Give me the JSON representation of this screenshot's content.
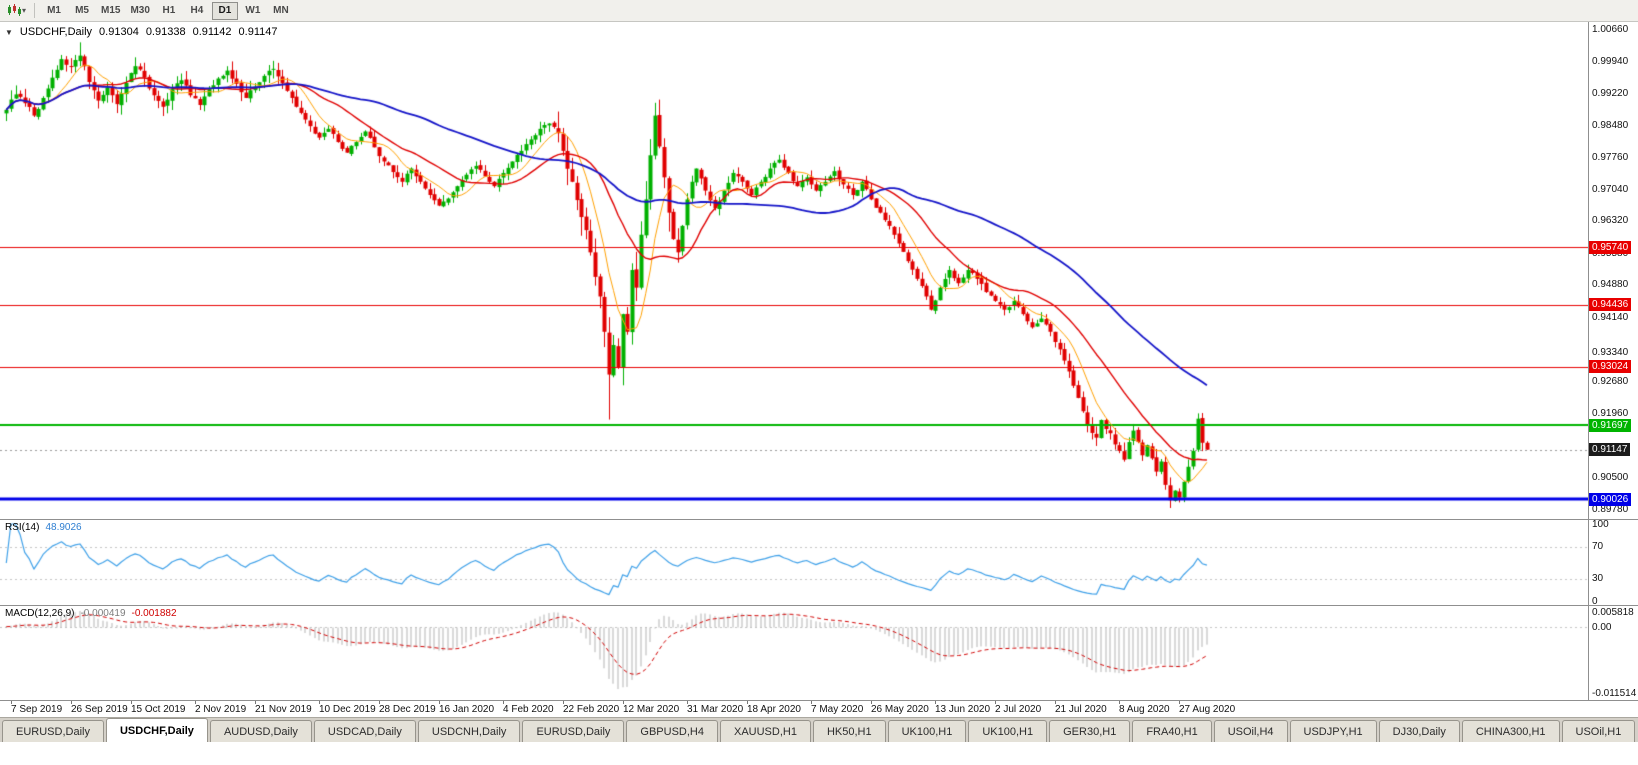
{
  "toolbar": {
    "chart_menu_icon": "candlestick-chart-icon",
    "dropdown_icon": "▾",
    "timeframes": [
      "M1",
      "M5",
      "M15",
      "M30",
      "H1",
      "H4",
      "D1",
      "W1",
      "MN"
    ],
    "active_timeframe": "D1"
  },
  "chart_header": {
    "collapse_icon": "▼",
    "symbol": "USDCHF,Daily",
    "open": "0.91304",
    "high": "0.91338",
    "low": "0.91142",
    "close": "0.91147"
  },
  "price_axis": {
    "decimals": 5,
    "ticks": [
      1.0066,
      0.9994,
      0.9922,
      0.9848,
      0.9776,
      0.9704,
      0.9632,
      0.9558,
      0.9488,
      0.9414,
      0.9334,
      0.9268,
      0.9196,
      0.905,
      0.8978
    ]
  },
  "levels": [
    {
      "value": 0.9574,
      "color": "#e80000",
      "line_width": 1
    },
    {
      "value": 0.94436,
      "color": "#e80000",
      "line_width": 1
    },
    {
      "value": 0.93024,
      "color": "#e80000",
      "line_width": 1
    },
    {
      "value": 0.91697,
      "color": "#00b400",
      "line_width": 2
    },
    {
      "value": 0.90026,
      "color": "#0000e8",
      "line_width": 3
    }
  ],
  "current_price": {
    "value": 0.91147,
    "label_bg": "#1b1b1b",
    "label_fg": "#ffffff"
  },
  "chart_data": {
    "type": "candlestick",
    "title": "USDCHF,Daily",
    "bars": 262,
    "price_min": 0.8978,
    "price_max": 1.0066,
    "up_color": "#00b000",
    "down_color": "#e00000",
    "close_anchors": [
      [
        0,
        0.9885
      ],
      [
        2,
        0.992
      ],
      [
        4,
        0.99
      ],
      [
        6,
        0.9872
      ],
      [
        8,
        0.9912
      ],
      [
        10,
        0.9958
      ],
      [
        12,
        1.0
      ],
      [
        14,
        0.9982
      ],
      [
        16,
        1.0008
      ],
      [
        18,
        0.9948
      ],
      [
        20,
        0.9906
      ],
      [
        22,
        0.9936
      ],
      [
        24,
        0.9898
      ],
      [
        26,
        0.9946
      ],
      [
        28,
        0.9984
      ],
      [
        30,
        0.9958
      ],
      [
        32,
        0.9918
      ],
      [
        34,
        0.9892
      ],
      [
        36,
        0.9932
      ],
      [
        38,
        0.9952
      ],
      [
        40,
        0.9918
      ],
      [
        42,
        0.9896
      ],
      [
        44,
        0.9932
      ],
      [
        46,
        0.9956
      ],
      [
        48,
        0.9974
      ],
      [
        50,
        0.9944
      ],
      [
        52,
        0.9912
      ],
      [
        54,
        0.9938
      ],
      [
        56,
        0.9962
      ],
      [
        58,
        0.9978
      ],
      [
        60,
        0.9946
      ],
      [
        62,
        0.9912
      ],
      [
        64,
        0.9878
      ],
      [
        66,
        0.9848
      ],
      [
        68,
        0.9822
      ],
      [
        70,
        0.9842
      ],
      [
        72,
        0.9812
      ],
      [
        74,
        0.9788
      ],
      [
        76,
        0.9812
      ],
      [
        78,
        0.9836
      ],
      [
        80,
        0.98
      ],
      [
        82,
        0.9768
      ],
      [
        84,
        0.9744
      ],
      [
        86,
        0.9722
      ],
      [
        88,
        0.9752
      ],
      [
        90,
        0.9722
      ],
      [
        92,
        0.9692
      ],
      [
        94,
        0.9668
      ],
      [
        96,
        0.9684
      ],
      [
        98,
        0.9712
      ],
      [
        100,
        0.9738
      ],
      [
        102,
        0.9758
      ],
      [
        104,
        0.9734
      ],
      [
        106,
        0.9712
      ],
      [
        108,
        0.9742
      ],
      [
        110,
        0.9768
      ],
      [
        112,
        0.9792
      ],
      [
        114,
        0.9818
      ],
      [
        116,
        0.9842
      ],
      [
        118,
        0.9854
      ],
      [
        120,
        0.9832
      ],
      [
        121,
        0.9792
      ],
      [
        123,
        0.9722
      ],
      [
        125,
        0.9642
      ],
      [
        127,
        0.9562
      ],
      [
        129,
        0.9462
      ],
      [
        130,
        0.9382
      ],
      [
        131,
        0.9285
      ],
      [
        132,
        0.9352
      ],
      [
        133,
        0.9302
      ],
      [
        134,
        0.9422
      ],
      [
        135,
        0.9382
      ],
      [
        136,
        0.9522
      ],
      [
        137,
        0.9482
      ],
      [
        138,
        0.9602
      ],
      [
        139,
        0.9682
      ],
      [
        140,
        0.9782
      ],
      [
        141,
        0.9872
      ],
      [
        142,
        0.9802
      ],
      [
        143,
        0.9732
      ],
      [
        144,
        0.9652
      ],
      [
        145,
        0.9592
      ],
      [
        146,
        0.9562
      ],
      [
        147,
        0.9622
      ],
      [
        148,
        0.9682
      ],
      [
        149,
        0.9722
      ],
      [
        150,
        0.9752
      ],
      [
        152,
        0.9702
      ],
      [
        154,
        0.9662
      ],
      [
        156,
        0.9702
      ],
      [
        158,
        0.9742
      ],
      [
        160,
        0.9722
      ],
      [
        162,
        0.9692
      ],
      [
        164,
        0.9722
      ],
      [
        166,
        0.9752
      ],
      [
        168,
        0.9772
      ],
      [
        170,
        0.9742
      ],
      [
        172,
        0.9712
      ],
      [
        174,
        0.9732
      ],
      [
        176,
        0.9702
      ],
      [
        178,
        0.9722
      ],
      [
        180,
        0.9746
      ],
      [
        182,
        0.9716
      ],
      [
        184,
        0.9692
      ],
      [
        186,
        0.9722
      ],
      [
        188,
        0.9682
      ],
      [
        190,
        0.9652
      ],
      [
        192,
        0.9622
      ],
      [
        194,
        0.9582
      ],
      [
        196,
        0.9542
      ],
      [
        198,
        0.9502
      ],
      [
        200,
        0.9462
      ],
      [
        201,
        0.9432
      ],
      [
        203,
        0.9482
      ],
      [
        205,
        0.9522
      ],
      [
        207,
        0.9492
      ],
      [
        209,
        0.9522
      ],
      [
        211,
        0.9502
      ],
      [
        213,
        0.9472
      ],
      [
        215,
        0.9452
      ],
      [
        217,
        0.9432
      ],
      [
        219,
        0.9452
      ],
      [
        221,
        0.9422
      ],
      [
        223,
        0.9392
      ],
      [
        225,
        0.9412
      ],
      [
        227,
        0.9382
      ],
      [
        229,
        0.9342
      ],
      [
        231,
        0.9292
      ],
      [
        233,
        0.9232
      ],
      [
        235,
        0.9172
      ],
      [
        237,
        0.9142
      ],
      [
        238,
        0.9182
      ],
      [
        240,
        0.9152
      ],
      [
        242,
        0.9112
      ],
      [
        243,
        0.9092
      ],
      [
        244,
        0.9132
      ],
      [
        245,
        0.9158
      ],
      [
        246,
        0.9132
      ],
      [
        247,
        0.9102
      ],
      [
        248,
        0.9125
      ],
      [
        249,
        0.9095
      ],
      [
        250,
        0.9065
      ],
      [
        251,
        0.9088
      ],
      [
        252,
        0.9035
      ],
      [
        253,
        0.9
      ],
      [
        254,
        0.9022
      ],
      [
        255,
        0.9006
      ],
      [
        256,
        0.9042
      ],
      [
        257,
        0.9076
      ],
      [
        258,
        0.9112
      ],
      [
        259,
        0.9185
      ],
      [
        260,
        0.91304
      ],
      [
        261,
        0.91147
      ]
    ],
    "wick_extremes": [
      {
        "index": 16,
        "high": 1.0038
      },
      {
        "index": 131,
        "low": 0.9183
      },
      {
        "index": 141,
        "high": 0.9901
      },
      {
        "index": 253,
        "low": 0.8998
      },
      {
        "index": 259,
        "high": 0.9197
      }
    ],
    "last_bar": {
      "open": 0.91304,
      "high": 0.91338,
      "low": 0.91142,
      "close": 0.91147
    },
    "moving_averages": [
      {
        "name": "ma-fast",
        "period": 8,
        "color": "#ffa000",
        "width": 1
      },
      {
        "name": "ma-medium",
        "period": 20,
        "color": "#e00000",
        "width": 1.4
      },
      {
        "name": "ma-slow",
        "period": 55,
        "color": "#1414c8",
        "width": 1.8
      }
    ],
    "x_ticks": [
      {
        "index": 1,
        "label": "7 Sep 2019"
      },
      {
        "index": 14,
        "label": "26 Sep 2019"
      },
      {
        "index": 27,
        "label": "15 Oct 2019"
      },
      {
        "index": 41,
        "label": "2 Nov 2019"
      },
      {
        "index": 54,
        "label": "21 Nov 2019"
      },
      {
        "index": 68,
        "label": "10 Dec 2019"
      },
      {
        "index": 81,
        "label": "28 Dec 2019"
      },
      {
        "index": 94,
        "label": "16 Jan 2020"
      },
      {
        "index": 108,
        "label": "4 Feb 2020"
      },
      {
        "index": 121,
        "label": "22 Feb 2020"
      },
      {
        "index": 134,
        "label": "12 Mar 2020"
      },
      {
        "index": 148,
        "label": "31 Mar 2020"
      },
      {
        "index": 161,
        "label": "18 Apr 2020"
      },
      {
        "index": 175,
        "label": "7 May 2020"
      },
      {
        "index": 188,
        "label": "26 May 2020"
      },
      {
        "index": 202,
        "label": "13 Jun 2020"
      },
      {
        "index": 215,
        "label": "2 Jul 2020"
      },
      {
        "index": 228,
        "label": "21 Jul 2020"
      },
      {
        "index": 242,
        "label": "8 Aug 2020"
      },
      {
        "index": 255,
        "label": "27 Aug 2020"
      }
    ]
  },
  "rsi": {
    "name": "RSI(14)",
    "value": "48.9026",
    "period": 14,
    "color": "#3ea0e8",
    "axis_ticks": [
      100,
      70,
      30,
      0
    ],
    "guide_levels": [
      70,
      30
    ]
  },
  "macd": {
    "name": "MACD(12,26,9)",
    "macd_value": "-0.000419",
    "signal_value": "-0.001882",
    "fast": 12,
    "slow": 26,
    "signal": 9,
    "hist_color": "#b4b4b4",
    "signal_color": "#d00000",
    "axis_top": "0.005818",
    "axis_zero": "0.00",
    "axis_bottom": "-0.011514"
  },
  "tabs": {
    "active_index": 1,
    "items": [
      "EURUSD,Daily",
      "USDCHF,Daily",
      "AUDUSD,Daily",
      "USDCAD,Daily",
      "USDCNH,Daily",
      "EURUSD,Daily",
      "GBPUSD,H4",
      "XAUUSD,H1",
      "HK50,H1",
      "UK100,H1",
      "UK100,H1",
      "GER30,H1",
      "FRA40,H1",
      "USOil,H4",
      "USDJPY,H1",
      "DJ30,Daily",
      "CHINA300,H1",
      "USOil,H1"
    ]
  }
}
